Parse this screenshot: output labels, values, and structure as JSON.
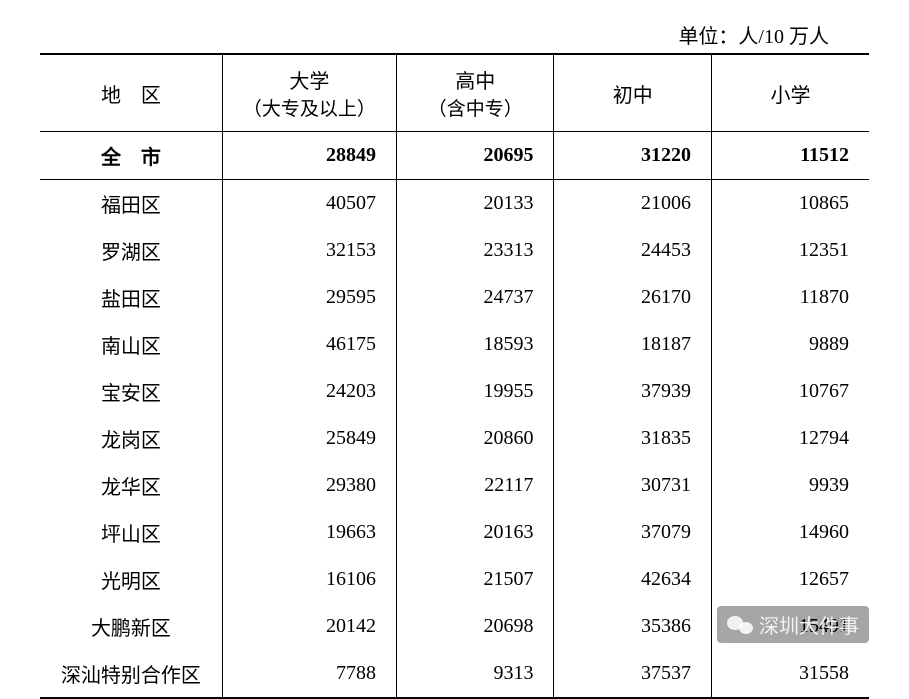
{
  "unit_label": "单位：人/10 万人",
  "columns": [
    {
      "label": "地　区",
      "sub": ""
    },
    {
      "label": "大学",
      "sub": "（大专及以上）"
    },
    {
      "label": "高中",
      "sub": "（含中专）"
    },
    {
      "label": "初中",
      "sub": ""
    },
    {
      "label": "小学",
      "sub": ""
    }
  ],
  "total_row": {
    "region": "全　市",
    "university": "28849",
    "highschool": "20695",
    "middleschool": "31220",
    "primary": "11512"
  },
  "rows": [
    {
      "region": "福田区",
      "university": "40507",
      "highschool": "20133",
      "middleschool": "21006",
      "primary": "10865"
    },
    {
      "region": "罗湖区",
      "university": "32153",
      "highschool": "23313",
      "middleschool": "24453",
      "primary": "12351"
    },
    {
      "region": "盐田区",
      "university": "29595",
      "highschool": "24737",
      "middleschool": "26170",
      "primary": "11870"
    },
    {
      "region": "南山区",
      "university": "46175",
      "highschool": "18593",
      "middleschool": "18187",
      "primary": "9889"
    },
    {
      "region": "宝安区",
      "university": "24203",
      "highschool": "19955",
      "middleschool": "37939",
      "primary": "10767"
    },
    {
      "region": "龙岗区",
      "university": "25849",
      "highschool": "20860",
      "middleschool": "31835",
      "primary": "12794"
    },
    {
      "region": "龙华区",
      "university": "29380",
      "highschool": "22117",
      "middleschool": "30731",
      "primary": "9939"
    },
    {
      "region": "坪山区",
      "university": "19663",
      "highschool": "20163",
      "middleschool": "37079",
      "primary": "14960"
    },
    {
      "region": "光明区",
      "university": "16106",
      "highschool": "21507",
      "middleschool": "42634",
      "primary": "12657"
    },
    {
      "region": "大鹏新区",
      "university": "20142",
      "highschool": "20698",
      "middleschool": "35386",
      "primary": "15491"
    },
    {
      "region": "深汕特别合作区",
      "university": "7788",
      "highschool": "9313",
      "middleschool": "37537",
      "primary": "31558"
    }
  ],
  "watermark": {
    "text": "深圳大件事"
  },
  "styling": {
    "font_family": "SimSun",
    "font_size_body": 20,
    "font_size_unit": 20,
    "text_color": "#000000",
    "background_color": "#ffffff",
    "border_top_width": 2.5,
    "border_inner_width": 1.4,
    "border_color": "#000000",
    "col_widths_pct": [
      22,
      21,
      19,
      19,
      19
    ],
    "number_align": "right",
    "region_align": "center",
    "row_padding_v": 9,
    "number_padding_right": 20,
    "watermark_bg": "rgba(0,0,0,0.35)",
    "watermark_color": "rgba(255,255,255,0.85)",
    "watermark_font": "Microsoft YaHei"
  }
}
